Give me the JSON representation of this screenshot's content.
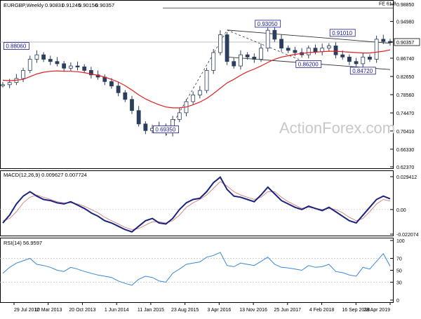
{
  "chart_data": [
    {
      "panel": "price",
      "type": "candlestick",
      "title": "EURGBP,Weekly",
      "ohlc": [
        "0.90831",
        "0.91245",
        "0.90156",
        "0.90357"
      ],
      "y_ticks": [
        "0.98850",
        "0.94980",
        "0.90357",
        "0.86740",
        "0.82650",
        "0.78560",
        "0.74470",
        "0.70410",
        "0.66330",
        "0.62370"
      ],
      "ylim": [
        0.6237,
        0.9885
      ],
      "last_price": "0.90357",
      "fib_label": "FE 61.8",
      "fib_level": 0.98,
      "watermark": "ActionForex.com",
      "annotations": [
        {
          "text": "0.88060",
          "x": "Oct 2012",
          "y": 0.8806
        },
        {
          "text": "0.69350",
          "x": "Jul 2015",
          "y": 0.6935
        },
        {
          "text": "0.93050",
          "x": "Aug 2017",
          "y": 0.9305
        },
        {
          "text": "0.86200",
          "x": "Apr 2018",
          "y": 0.862
        },
        {
          "text": "0.91010",
          "x": "Aug 2018",
          "y": 0.9101
        },
        {
          "text": "0.84720",
          "x": "Feb 2019",
          "y": 0.8472
        }
      ],
      "series": [
        {
          "name": "close",
          "values": [
            0.808,
            0.813,
            0.822,
            0.84,
            0.865,
            0.875,
            0.865,
            0.86,
            0.855,
            0.845,
            0.85,
            0.848,
            0.84,
            0.83,
            0.825,
            0.815,
            0.805,
            0.79,
            0.775,
            0.75,
            0.72,
            0.705,
            0.71,
            0.715,
            0.7,
            0.73,
            0.745,
            0.77,
            0.785,
            0.795,
            0.84,
            0.88,
            0.92,
            0.86,
            0.85,
            0.875,
            0.87,
            0.865,
            0.89,
            0.93,
            0.91,
            0.89,
            0.885,
            0.88,
            0.875,
            0.89,
            0.882,
            0.89,
            0.895,
            0.875,
            0.87,
            0.86,
            0.855,
            0.87,
            0.865,
            0.91,
            0.905,
            0.9036
          ]
        },
        {
          "name": "ma",
          "values": [
            0.818,
            0.817,
            0.818,
            0.82,
            0.826,
            0.832,
            0.836,
            0.838,
            0.839,
            0.838,
            0.838,
            0.837,
            0.835,
            0.832,
            0.829,
            0.825,
            0.82,
            0.814,
            0.806,
            0.796,
            0.785,
            0.776,
            0.769,
            0.763,
            0.758,
            0.756,
            0.756,
            0.758,
            0.763,
            0.769,
            0.777,
            0.788,
            0.8,
            0.812,
            0.82,
            0.829,
            0.837,
            0.843,
            0.85,
            0.858,
            0.865,
            0.87,
            0.873,
            0.876,
            0.878,
            0.88,
            0.881,
            0.882,
            0.883,
            0.883,
            0.882,
            0.881,
            0.88,
            0.879,
            0.879,
            0.881,
            0.883,
            0.886
          ]
        }
      ],
      "channel_upper": [
        [
          0.9305,
          0.901
        ],
        [
          "Aug 2017",
          "Apr 2019"
        ]
      ],
      "channel_lower": [
        [
          0.87,
          0.842
        ],
        [
          "Aug 2017",
          "Apr 2019"
        ]
      ]
    },
    {
      "panel": "macd",
      "type": "line",
      "title": "MACD(12,26,9) 0.009627 0.007724",
      "y_ticks": [
        "0.029412",
        "0.00",
        "-0.022074"
      ],
      "ylim": [
        -0.022074,
        0.029412
      ],
      "series": [
        {
          "name": "macd",
          "values": [
            -0.012,
            -0.005,
            0.005,
            0.012,
            0.016,
            0.012,
            0.009,
            0.008,
            0.006,
            0.005,
            0.007,
            0.004,
            0.001,
            -0.003,
            -0.006,
            -0.01,
            -0.012,
            -0.015,
            -0.018,
            -0.02,
            -0.015,
            -0.01,
            -0.008,
            -0.012,
            -0.013,
            -0.008,
            0.0,
            0.006,
            0.009,
            0.01,
            0.016,
            0.024,
            0.029,
            0.018,
            0.012,
            0.011,
            0.009,
            0.007,
            0.013,
            0.02,
            0.014,
            0.008,
            0.005,
            0.002,
            0.0,
            0.003,
            0.001,
            -0.001,
            0.002,
            -0.002,
            -0.006,
            -0.01,
            -0.012,
            -0.005,
            0.002,
            0.009,
            0.012,
            0.0096
          ]
        },
        {
          "name": "signal",
          "values": [
            -0.01,
            -0.008,
            -0.002,
            0.006,
            0.011,
            0.013,
            0.011,
            0.009,
            0.007,
            0.006,
            0.006,
            0.005,
            0.003,
            0.0,
            -0.003,
            -0.007,
            -0.01,
            -0.013,
            -0.016,
            -0.018,
            -0.017,
            -0.014,
            -0.011,
            -0.011,
            -0.012,
            -0.01,
            -0.005,
            0.002,
            0.006,
            0.009,
            0.013,
            0.019,
            0.025,
            0.021,
            0.016,
            0.013,
            0.011,
            0.009,
            0.011,
            0.016,
            0.016,
            0.011,
            0.007,
            0.004,
            0.001,
            0.002,
            0.001,
            0.0,
            0.001,
            0.0,
            -0.003,
            -0.007,
            -0.01,
            -0.008,
            -0.002,
            0.005,
            0.009,
            0.0077
          ]
        }
      ]
    },
    {
      "panel": "rsi",
      "type": "line",
      "title": "RSI(14) 56.9597",
      "y_ticks": [
        "100",
        "70",
        "50",
        "30",
        "0"
      ],
      "ylim": [
        0,
        100
      ],
      "levels": [
        70,
        30
      ],
      "series": [
        {
          "name": "rsi",
          "values": [
            45,
            55,
            62,
            66,
            70,
            60,
            58,
            55,
            50,
            48,
            55,
            52,
            48,
            45,
            42,
            40,
            38,
            32,
            28,
            25,
            35,
            40,
            38,
            32,
            30,
            45,
            52,
            60,
            62,
            64,
            72,
            75,
            80,
            58,
            56,
            62,
            60,
            58,
            65,
            72,
            60,
            55,
            54,
            52,
            50,
            58,
            55,
            56,
            60,
            48,
            46,
            42,
            40,
            55,
            52,
            65,
            78,
            57
          ]
        }
      ],
      "series_labels": []
    }
  ],
  "x_axis": {
    "labels": [
      "29 Jul 2012",
      "10 Mar 2013",
      "20 Oct 2013",
      "1 Jun 2014",
      "11 Jan 2015",
      "23 Aug 2015",
      "3 Apr 2016",
      "13 Nov 2016",
      "25 Jun 2017",
      "4 Feb 2018",
      "16 Sep 2018",
      "28 Apr 2019"
    ]
  },
  "colors": {
    "candles": "#2b3f5c",
    "ma": "#e02020",
    "macd": "#1a237e",
    "signal": "#d28a8a",
    "rsi": "#3a86d8",
    "annotation_border": "#1a1a8c",
    "grid": "#c0c0c0"
  }
}
